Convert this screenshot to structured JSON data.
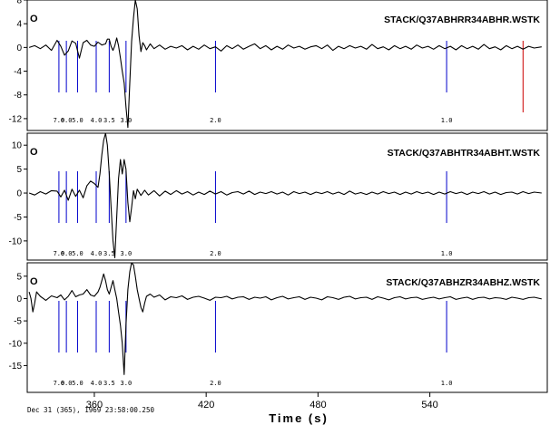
{
  "chart_data": [
    {
      "type": "line",
      "title": "STACK/Q37ABHRR34ABHR.WSTK",
      "marker_letter": "O",
      "ylim": [
        -14,
        8
      ],
      "yticks": [
        8,
        4,
        0,
        -4,
        -8,
        -12
      ],
      "ytick_labels": [
        "8",
        "4",
        "0",
        "-4",
        "-8",
        "-12"
      ],
      "trace": [
        [
          325,
          0
        ],
        [
          328,
          0.3
        ],
        [
          331,
          -0.2
        ],
        [
          334,
          0.4
        ],
        [
          337,
          -0.5
        ],
        [
          340,
          1.2
        ],
        [
          342,
          0.2
        ],
        [
          344,
          -1.3
        ],
        [
          346,
          -0.6
        ],
        [
          348,
          1.1
        ],
        [
          350,
          0.7
        ],
        [
          352,
          -1.8
        ],
        [
          354,
          0.8
        ],
        [
          356,
          1.2
        ],
        [
          358,
          0.4
        ],
        [
          360,
          0.2
        ],
        [
          362,
          0.9
        ],
        [
          364,
          0.4
        ],
        [
          366,
          0.6
        ],
        [
          367,
          1.4
        ],
        [
          368,
          1.4
        ],
        [
          369,
          0.2
        ],
        [
          370,
          -0.5
        ],
        [
          371,
          0.3
        ],
        [
          372,
          1.6
        ],
        [
          373,
          0.3
        ],
        [
          374,
          -1.8
        ],
        [
          375,
          -4
        ],
        [
          376,
          -6
        ],
        [
          377,
          -10
        ],
        [
          378,
          -13.5
        ],
        [
          379,
          -6
        ],
        [
          380,
          1
        ],
        [
          381,
          5
        ],
        [
          382,
          8
        ],
        [
          383,
          6.5
        ],
        [
          384,
          2
        ],
        [
          385,
          -0.7
        ],
        [
          386,
          0.8
        ],
        [
          387,
          0.3
        ],
        [
          388,
          -0.4
        ],
        [
          390,
          0.6
        ],
        [
          392,
          -0.2
        ],
        [
          395,
          0.4
        ],
        [
          398,
          -0.3
        ],
        [
          401,
          0.2
        ],
        [
          404,
          -0.1
        ],
        [
          407,
          0.3
        ],
        [
          410,
          -0.4
        ],
        [
          413,
          0.2
        ],
        [
          416,
          -0.3
        ],
        [
          419,
          0.4
        ],
        [
          422,
          -0.2
        ],
        [
          425,
          0.1
        ],
        [
          428,
          -0.6
        ],
        [
          431,
          0.3
        ],
        [
          434,
          -0.2
        ],
        [
          437,
          0.4
        ],
        [
          440,
          -0.3
        ],
        [
          443,
          0.2
        ],
        [
          446,
          0.6
        ],
        [
          449,
          -0.2
        ],
        [
          452,
          0.3
        ],
        [
          455,
          -0.4
        ],
        [
          458,
          0.2
        ],
        [
          461,
          -0.3
        ],
        [
          464,
          0.4
        ],
        [
          467,
          -0.1
        ],
        [
          470,
          0.2
        ],
        [
          473,
          -0.3
        ],
        [
          476,
          0.1
        ],
        [
          479,
          0.3
        ],
        [
          482,
          -0.2
        ],
        [
          485,
          0.4
        ],
        [
          488,
          -0.5
        ],
        [
          491,
          0.2
        ],
        [
          494,
          -0.2
        ],
        [
          497,
          0.3
        ],
        [
          500,
          -0.1
        ],
        [
          503,
          0.2
        ],
        [
          506,
          -0.3
        ],
        [
          509,
          0.5
        ],
        [
          512,
          -0.2
        ],
        [
          515,
          0.1
        ],
        [
          518,
          -0.4
        ],
        [
          521,
          0.3
        ],
        [
          524,
          -0.2
        ],
        [
          527,
          0.2
        ],
        [
          530,
          -0.3
        ],
        [
          533,
          0.4
        ],
        [
          536,
          -0.1
        ],
        [
          539,
          0.2
        ],
        [
          542,
          -0.3
        ],
        [
          545,
          0.3
        ],
        [
          548,
          -0.2
        ],
        [
          551,
          0.2
        ],
        [
          554,
          -0.4
        ],
        [
          557,
          0.3
        ],
        [
          560,
          -0.2
        ],
        [
          563,
          0.2
        ],
        [
          566,
          -0.3
        ],
        [
          569,
          0.5
        ],
        [
          572,
          -0.2
        ],
        [
          575,
          0.1
        ],
        [
          578,
          -0.4
        ],
        [
          581,
          0.3
        ],
        [
          584,
          -0.2
        ],
        [
          587,
          0.2
        ],
        [
          590,
          -0.3
        ],
        [
          593,
          0.2
        ],
        [
          596,
          -0.1
        ],
        [
          600,
          0.1
        ]
      ]
    },
    {
      "type": "line",
      "title": "STACK/Q37ABHTR34ABHT.WSTK",
      "marker_letter": "O",
      "ylim": [
        -14,
        12.5
      ],
      "yticks": [
        10,
        5,
        0,
        -5,
        -10
      ],
      "ytick_labels": [
        "10",
        "5",
        "0",
        "-5",
        "-10"
      ],
      "trace": [
        [
          325,
          0
        ],
        [
          328,
          -0.4
        ],
        [
          331,
          0.3
        ],
        [
          334,
          -0.2
        ],
        [
          337,
          0.5
        ],
        [
          340,
          0.4
        ],
        [
          342,
          -0.8
        ],
        [
          344,
          0.6
        ],
        [
          346,
          -1.5
        ],
        [
          348,
          0.8
        ],
        [
          350,
          -0.7
        ],
        [
          352,
          0.6
        ],
        [
          354,
          -1
        ],
        [
          356,
          1.5
        ],
        [
          358,
          2.5
        ],
        [
          360,
          2
        ],
        [
          362,
          1.2
        ],
        [
          363,
          4
        ],
        [
          364,
          8
        ],
        [
          365,
          11
        ],
        [
          366,
          12.5
        ],
        [
          367,
          10
        ],
        [
          368,
          4
        ],
        [
          369,
          -3
        ],
        [
          370,
          -10
        ],
        [
          371,
          -13.5
        ],
        [
          372,
          -5
        ],
        [
          373,
          3
        ],
        [
          374,
          7
        ],
        [
          375,
          4
        ],
        [
          376,
          7
        ],
        [
          377,
          5
        ],
        [
          378,
          -2
        ],
        [
          379,
          -6
        ],
        [
          380,
          -3
        ],
        [
          381,
          0.5
        ],
        [
          382,
          -1.2
        ],
        [
          383,
          0.8
        ],
        [
          385,
          -0.5
        ],
        [
          387,
          0.6
        ],
        [
          389,
          -0.4
        ],
        [
          392,
          0.5
        ],
        [
          395,
          -0.6
        ],
        [
          398,
          0.4
        ],
        [
          401,
          -0.3
        ],
        [
          404,
          0.5
        ],
        [
          407,
          -0.2
        ],
        [
          410,
          0.3
        ],
        [
          413,
          -0.4
        ],
        [
          416,
          0.2
        ],
        [
          419,
          -0.3
        ],
        [
          422,
          0.4
        ],
        [
          425,
          -0.2
        ],
        [
          428,
          0.3
        ],
        [
          431,
          -0.4
        ],
        [
          434,
          0.1
        ],
        [
          437,
          0.3
        ],
        [
          440,
          -0.2
        ],
        [
          443,
          0.4
        ],
        [
          446,
          -0.3
        ],
        [
          449,
          0.2
        ],
        [
          452,
          -0.1
        ],
        [
          455,
          0.3
        ],
        [
          458,
          -0.2
        ],
        [
          461,
          0.2
        ],
        [
          464,
          -0.4
        ],
        [
          467,
          0.3
        ],
        [
          470,
          -0.1
        ],
        [
          473,
          0.2
        ],
        [
          476,
          -0.3
        ],
        [
          479,
          0.2
        ],
        [
          482,
          -0.1
        ],
        [
          485,
          0.3
        ],
        [
          488,
          -0.2
        ],
        [
          491,
          0.2
        ],
        [
          494,
          -0.3
        ],
        [
          497,
          0.4
        ],
        [
          500,
          -0.2
        ],
        [
          503,
          0.1
        ],
        [
          506,
          -0.3
        ],
        [
          509,
          0.2
        ],
        [
          512,
          -0.2
        ],
        [
          515,
          0.3
        ],
        [
          518,
          -0.1
        ],
        [
          521,
          0.2
        ],
        [
          524,
          -0.3
        ],
        [
          527,
          0.2
        ],
        [
          530,
          -0.2
        ],
        [
          533,
          0.3
        ],
        [
          536,
          -0.1
        ],
        [
          539,
          0.2
        ],
        [
          542,
          -0.3
        ],
        [
          545,
          0.2
        ],
        [
          548,
          -0.2
        ],
        [
          551,
          0.3
        ],
        [
          554,
          -0.1
        ],
        [
          557,
          0.2
        ],
        [
          560,
          -0.3
        ],
        [
          563,
          0.2
        ],
        [
          566,
          -0.1
        ],
        [
          569,
          0.3
        ],
        [
          572,
          -0.2
        ],
        [
          575,
          0.2
        ],
        [
          578,
          -0.3
        ],
        [
          581,
          0.1
        ],
        [
          584,
          0.2
        ],
        [
          587,
          -0.2
        ],
        [
          590,
          0.3
        ],
        [
          593,
          -0.1
        ],
        [
          596,
          0.2
        ],
        [
          600,
          0
        ]
      ]
    },
    {
      "type": "line",
      "title": "STACK/Q37ABHZR34ABHZ.WSTK",
      "marker_letter": "O",
      "ylim": [
        -21,
        8
      ],
      "yticks": [
        5,
        0,
        -5,
        -10,
        -15
      ],
      "ytick_labels": [
        "5",
        "0",
        "-5",
        "-10",
        "-15"
      ],
      "trace": [
        [
          325,
          1.5
        ],
        [
          326,
          0
        ],
        [
          327,
          -3
        ],
        [
          328,
          -1
        ],
        [
          329,
          1.5
        ],
        [
          331,
          0.5
        ],
        [
          334,
          -0.4
        ],
        [
          337,
          0.6
        ],
        [
          340,
          0.2
        ],
        [
          342,
          0.8
        ],
        [
          344,
          -0.3
        ],
        [
          346,
          0.5
        ],
        [
          348,
          1.8
        ],
        [
          350,
          0.4
        ],
        [
          352,
          0.8
        ],
        [
          354,
          1
        ],
        [
          356,
          2
        ],
        [
          358,
          0.8
        ],
        [
          360,
          0.5
        ],
        [
          362,
          1.5
        ],
        [
          363,
          2.5
        ],
        [
          364,
          4
        ],
        [
          365,
          5.5
        ],
        [
          366,
          4
        ],
        [
          367,
          2
        ],
        [
          368,
          1
        ],
        [
          369,
          2.5
        ],
        [
          370,
          4
        ],
        [
          371,
          2
        ],
        [
          372,
          0
        ],
        [
          373,
          -3
        ],
        [
          374,
          -6
        ],
        [
          375,
          -10
        ],
        [
          376,
          -17
        ],
        [
          377,
          -6
        ],
        [
          378,
          2
        ],
        [
          379,
          6
        ],
        [
          380,
          8
        ],
        [
          381,
          7.5
        ],
        [
          382,
          5
        ],
        [
          383,
          2
        ],
        [
          384,
          0
        ],
        [
          385,
          -2
        ],
        [
          386,
          -3
        ],
        [
          387,
          -1
        ],
        [
          388,
          0.5
        ],
        [
          390,
          1
        ],
        [
          392,
          0.3
        ],
        [
          395,
          0.8
        ],
        [
          398,
          -0.3
        ],
        [
          401,
          0.4
        ],
        [
          404,
          0.2
        ],
        [
          407,
          0.6
        ],
        [
          410,
          -0.2
        ],
        [
          413,
          0.3
        ],
        [
          416,
          0.5
        ],
        [
          419,
          0.1
        ],
        [
          422,
          -0.4
        ],
        [
          425,
          0.3
        ],
        [
          428,
          0.2
        ],
        [
          431,
          0.5
        ],
        [
          434,
          -0.1
        ],
        [
          437,
          0.3
        ],
        [
          440,
          0.4
        ],
        [
          443,
          -0.2
        ],
        [
          446,
          0.3
        ],
        [
          449,
          0.1
        ],
        [
          452,
          0.4
        ],
        [
          455,
          -0.3
        ],
        [
          458,
          0.2
        ],
        [
          461,
          0.5
        ],
        [
          464,
          -0.1
        ],
        [
          467,
          0.2
        ],
        [
          470,
          0.4
        ],
        [
          473,
          -0.2
        ],
        [
          476,
          0.3
        ],
        [
          479,
          0.1
        ],
        [
          482,
          -0.3
        ],
        [
          485,
          0.4
        ],
        [
          488,
          0.2
        ],
        [
          491,
          -0.2
        ],
        [
          494,
          0.3
        ],
        [
          497,
          0.5
        ],
        [
          500,
          -0.1
        ],
        [
          503,
          0.2
        ],
        [
          506,
          0.3
        ],
        [
          509,
          -0.2
        ],
        [
          512,
          0.4
        ],
        [
          515,
          0.1
        ],
        [
          518,
          -0.3
        ],
        [
          521,
          0.2
        ],
        [
          524,
          0.4
        ],
        [
          527,
          -0.1
        ],
        [
          530,
          0.2
        ],
        [
          533,
          0.3
        ],
        [
          536,
          -0.2
        ],
        [
          539,
          0.1
        ],
        [
          542,
          0.3
        ],
        [
          545,
          -0.1
        ],
        [
          548,
          0.2
        ],
        [
          551,
          0.4
        ],
        [
          554,
          -0.2
        ],
        [
          557,
          0.1
        ],
        [
          560,
          0.3
        ],
        [
          563,
          -0.2
        ],
        [
          566,
          0.2
        ],
        [
          569,
          0.3
        ],
        [
          572,
          -0.1
        ],
        [
          575,
          0.2
        ],
        [
          578,
          0.1
        ],
        [
          581,
          -0.2
        ],
        [
          584,
          0.3
        ],
        [
          587,
          0.1
        ],
        [
          590,
          -0.2
        ],
        [
          593,
          0.2
        ],
        [
          596,
          0.3
        ],
        [
          600,
          -0.1
        ]
      ]
    }
  ],
  "phase_markers": [
    {
      "x": 341,
      "label": "7.0"
    },
    {
      "x": 345,
      "label": "6.0"
    },
    {
      "x": 351,
      "label": "5.0"
    },
    {
      "x": 361,
      "label": "4.0"
    },
    {
      "x": 368,
      "label": "3.5"
    },
    {
      "x": 377,
      "label": "3.0"
    },
    {
      "x": 425,
      "label": "2.0"
    },
    {
      "x": 549,
      "label": "1.0"
    }
  ],
  "red_marker_x": 590,
  "xaxis": {
    "label": "Time (s)",
    "xlim": [
      324,
      603
    ],
    "ticks": [
      360,
      420,
      480,
      540
    ],
    "tick_labels": [
      "360",
      "420",
      "480",
      "540"
    ]
  },
  "footer_timestamp": "Dec 31 (365), 1969 23:58:00.250",
  "colors": {
    "trace": "#000000",
    "phase_marker": "#0000cc",
    "red_marker": "#cc0000",
    "frame": "#000000"
  }
}
